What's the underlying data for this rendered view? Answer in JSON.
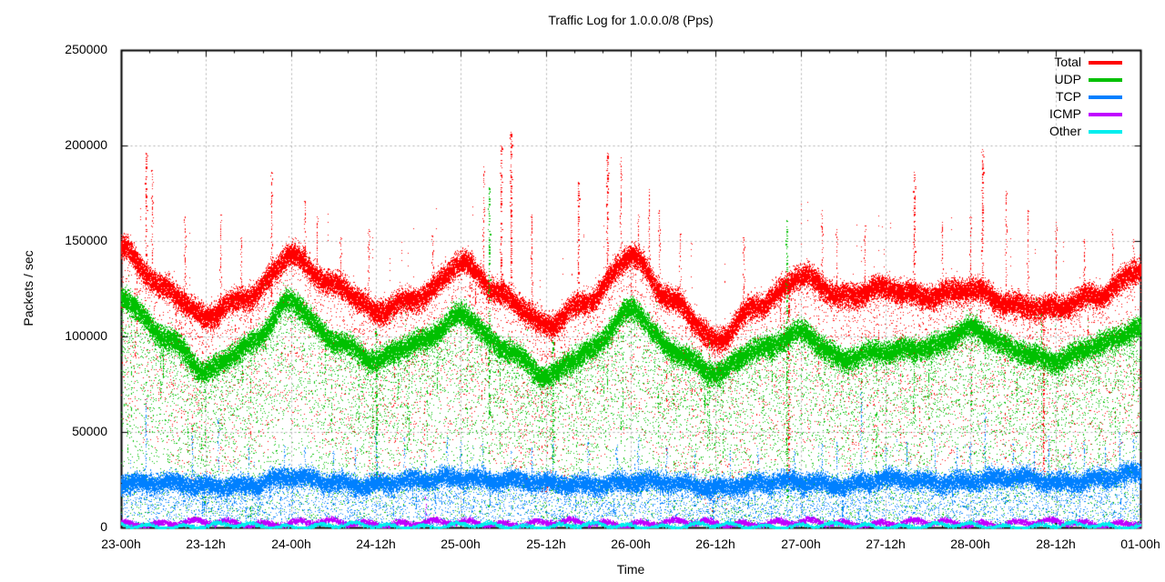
{
  "chart_data": {
    "type": "scatter",
    "title": "Traffic Log for 1.0.0.0/8 (Pps)",
    "xlabel": "Time",
    "ylabel": "Packets / sec",
    "ylim": [
      0,
      250000
    ],
    "x_span_hours": 144,
    "grid": true,
    "legend_position": "top-right-inside",
    "x_minor_tick_hours": 4,
    "y_ticks": [
      {
        "value": 0,
        "label": "0"
      },
      {
        "value": 50000,
        "label": "50000"
      },
      {
        "value": 100000,
        "label": "100000"
      },
      {
        "value": 150000,
        "label": "150000"
      },
      {
        "value": 200000,
        "label": "200000"
      },
      {
        "value": 250000,
        "label": "250000"
      }
    ],
    "x_ticks": [
      {
        "hour": 0,
        "label": "23-00h"
      },
      {
        "hour": 12,
        "label": "23-12h"
      },
      {
        "hour": 24,
        "label": "24-00h"
      },
      {
        "hour": 36,
        "label": "24-12h"
      },
      {
        "hour": 48,
        "label": "25-00h"
      },
      {
        "hour": 60,
        "label": "25-12h"
      },
      {
        "hour": 72,
        "label": "26-00h"
      },
      {
        "hour": 84,
        "label": "26-12h"
      },
      {
        "hour": 96,
        "label": "27-00h"
      },
      {
        "hour": 108,
        "label": "27-12h"
      },
      {
        "hour": 120,
        "label": "28-00h"
      },
      {
        "hour": 132,
        "label": "28-12h"
      },
      {
        "hour": 144,
        "label": "01-00h"
      }
    ],
    "series": [
      {
        "name": "Total",
        "color": "#ff0000",
        "style": "band",
        "control_points": {
          "hours": [
            0,
            6,
            12,
            18,
            24,
            30,
            36,
            42,
            48,
            54,
            60,
            66,
            72,
            78,
            84,
            90,
            96,
            102,
            108,
            114,
            120,
            126,
            132,
            138,
            144
          ],
          "values": [
            145000,
            126000,
            111000,
            120000,
            143000,
            127000,
            113000,
            121000,
            138000,
            121000,
            107000,
            118000,
            142000,
            119000,
            97000,
            117000,
            132000,
            120000,
            126000,
            121000,
            124000,
            117000,
            115000,
            121000,
            136000
          ]
        },
        "core_n": 30,
        "core_sigma": 2800,
        "upper_n": 4,
        "upper_sigma": 3600,
        "rare_high_prob": 0.03,
        "rare_high_max": 36000,
        "tail_n": 9,
        "tail_mode": "depth",
        "tail_depth": 90000,
        "tail_pow": 2.2,
        "streak_prob": 0.035,
        "streak_n": 15,
        "spikes": [
          [
            3.5,
            196000
          ],
          [
            4.4,
            187000
          ],
          [
            9,
            163000
          ],
          [
            14,
            164000
          ],
          [
            17,
            152000
          ],
          [
            21.2,
            186000
          ],
          [
            26,
            171000
          ],
          [
            27.6,
            163000
          ],
          [
            31,
            152000
          ],
          [
            35,
            156000
          ],
          [
            44,
            153000
          ],
          [
            51.2,
            189000
          ],
          [
            53.6,
            200000
          ],
          [
            55,
            207000
          ],
          [
            58,
            164000
          ],
          [
            64.6,
            181000
          ],
          [
            68.6,
            196000
          ],
          [
            70.6,
            194000
          ],
          [
            73,
            164000
          ],
          [
            74.6,
            177000
          ],
          [
            76,
            166000
          ],
          [
            79,
            154000
          ],
          [
            88,
            152000
          ],
          [
            94.3,
            120000,
            20000
          ],
          [
            99,
            166000
          ],
          [
            101,
            156000
          ],
          [
            105,
            158000
          ],
          [
            112,
            186000
          ],
          [
            116,
            160000
          ],
          [
            120,
            163000
          ],
          [
            121.6,
            198000
          ],
          [
            125,
            176000
          ],
          [
            128,
            166000
          ],
          [
            130.3,
            118000,
            25000
          ],
          [
            132,
            160000
          ],
          [
            136,
            151000
          ],
          [
            140,
            156000
          ],
          [
            143,
            151000
          ]
        ]
      },
      {
        "name": "UDP",
        "color": "#00c000",
        "style": "band",
        "control_points": {
          "hours": [
            0,
            6,
            12,
            18,
            24,
            30,
            36,
            42,
            48,
            54,
            60,
            66,
            72,
            78,
            84,
            90,
            96,
            102,
            108,
            114,
            120,
            126,
            132,
            138,
            144
          ],
          "values": [
            120000,
            100000,
            83000,
            95000,
            118000,
            99000,
            87000,
            97000,
            112000,
            93000,
            80000,
            93000,
            113000,
            93000,
            81000,
            93000,
            103000,
            88000,
            92000,
            95000,
            104000,
            93000,
            88000,
            95000,
            104000
          ]
        },
        "core_n": 30,
        "core_sigma": 2700,
        "upper_n": 3,
        "upper_sigma": 3200,
        "rare_high_prob": 0.02,
        "rare_high_max": 28000,
        "tail_n": 13,
        "tail_mode": "zero",
        "tail_pow": 1.6,
        "streak_prob": 0.05,
        "streak_n": 20,
        "spikes": [
          [
            36,
            104000,
            18000
          ],
          [
            52,
            178000,
            60000
          ],
          [
            61,
            98000,
            30000
          ],
          [
            83,
            98000,
            40000
          ],
          [
            94,
            161000,
            12000
          ],
          [
            112,
            100000,
            55000
          ],
          [
            130,
            112000,
            60000
          ],
          [
            143,
            110000,
            70000
          ]
        ]
      },
      {
        "name": "TCP",
        "color": "#0080ff",
        "style": "band",
        "control_points": {
          "hours": [
            0,
            6,
            12,
            18,
            24,
            30,
            36,
            42,
            48,
            54,
            60,
            66,
            72,
            78,
            84,
            90,
            96,
            102,
            108,
            114,
            120,
            126,
            132,
            138,
            144
          ],
          "values": [
            24000,
            23000,
            22000,
            23000,
            26000,
            24000,
            23000,
            24000,
            27000,
            25000,
            23000,
            23000,
            24000,
            23000,
            22000,
            23000,
            24000,
            23000,
            25000,
            24000,
            25000,
            26000,
            24000,
            26000,
            28000
          ]
        },
        "core_n": 24,
        "core_sigma": 2300,
        "upper_n": 3,
        "upper_sigma": 2600,
        "rare_high_prob": 0.015,
        "rare_high_max": 16000,
        "tail_n": 7,
        "tail_mode": "zero",
        "tail_pow": 1.5,
        "streak_prob": 0.04,
        "streak_n": 14,
        "spikes": [
          [
            3.5,
            67000
          ],
          [
            10,
            48000
          ],
          [
            13.7,
            57000
          ],
          [
            18,
            42000
          ],
          [
            23,
            43000
          ],
          [
            26,
            42000
          ],
          [
            30,
            40000
          ],
          [
            33,
            42000
          ],
          [
            36,
            50000
          ],
          [
            40,
            47000
          ],
          [
            43,
            40000
          ],
          [
            46,
            47000
          ],
          [
            48,
            45000
          ],
          [
            51,
            44000
          ],
          [
            55,
            40000
          ],
          [
            58,
            42000
          ],
          [
            61,
            47000
          ],
          [
            66,
            45000
          ],
          [
            70,
            42000
          ],
          [
            73,
            47000
          ],
          [
            77,
            42000
          ],
          [
            81,
            40000
          ],
          [
            86,
            40000
          ],
          [
            90,
            38000
          ],
          [
            95,
            40000
          ],
          [
            99,
            44000
          ],
          [
            101,
            45000
          ],
          [
            104.5,
            71000
          ],
          [
            108,
            42000
          ],
          [
            111,
            45000
          ],
          [
            115,
            50000
          ],
          [
            118,
            42000
          ],
          [
            120,
            45000
          ],
          [
            122,
            60000
          ],
          [
            126,
            44000
          ],
          [
            129,
            40000
          ],
          [
            131,
            48000
          ],
          [
            134,
            42000
          ],
          [
            136,
            45000
          ],
          [
            139,
            42000
          ],
          [
            141,
            50000
          ],
          [
            143,
            46000
          ]
        ]
      },
      {
        "name": "ICMP",
        "color": "#c000ff",
        "style": "flatband",
        "control_points": {
          "hours": [
            0,
            144
          ],
          "values": [
            2600,
            2600
          ]
        },
        "core_n": 10,
        "core_sigma": 700,
        "min_value": 300,
        "spikes": [
          [
            43,
            16000,
            3000
          ]
        ]
      },
      {
        "name": "Other",
        "color": "#00eeee",
        "style": "flatband",
        "control_points": {
          "hours": [
            0,
            144
          ],
          "values": [
            1100,
            1100
          ]
        },
        "core_n": 8,
        "core_sigma": 450,
        "min_value": 120,
        "spikes": []
      }
    ]
  },
  "colors": {
    "frame": "#000000",
    "grid": "#b0b0b0",
    "background": "#ffffff"
  }
}
